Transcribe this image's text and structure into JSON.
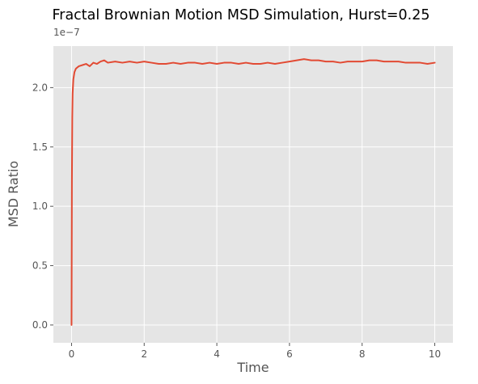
{
  "chart_data": {
    "type": "line",
    "title": "Fractal Brownian Motion MSD Simulation, Hurst=0.25",
    "xlabel": "Time",
    "ylabel": "MSD Ratio",
    "offset_text": "1e−7",
    "xlim": [
      -0.5,
      10.5
    ],
    "ylim": [
      -0.15,
      2.35
    ],
    "y_scale_exponent": -7,
    "x_ticks": [
      0,
      2,
      4,
      6,
      8,
      10
    ],
    "x_tick_labels": [
      "0",
      "2",
      "4",
      "6",
      "8",
      "10"
    ],
    "y_ticks": [
      0.0,
      0.5,
      1.0,
      1.5,
      2.0
    ],
    "y_tick_labels": [
      "0.0",
      "0.5",
      "1.0",
      "1.5",
      "2.0"
    ],
    "grid": true,
    "line_color": "#E24A33",
    "background_color": "#E5E5E5",
    "grid_color": "#FFFFFF",
    "series": [
      {
        "x": [
          0,
          0.01,
          0.02,
          0.03,
          0.05,
          0.08,
          0.12,
          0.2,
          0.3,
          0.4,
          0.5,
          0.6,
          0.7,
          0.8,
          0.9,
          1.0,
          1.2,
          1.4,
          1.6,
          1.8,
          2.0,
          2.2,
          2.4,
          2.6,
          2.8,
          3.0,
          3.2,
          3.4,
          3.6,
          3.8,
          4.0,
          4.2,
          4.4,
          4.6,
          4.8,
          5.0,
          5.2,
          5.4,
          5.6,
          5.8,
          6.0,
          6.2,
          6.4,
          6.6,
          6.8,
          7.0,
          7.2,
          7.4,
          7.6,
          7.8,
          8.0,
          8.2,
          8.4,
          8.6,
          8.8,
          9.0,
          9.2,
          9.4,
          9.6,
          9.8,
          10.0
        ],
        "y": [
          0.0,
          1.2,
          1.75,
          1.95,
          2.07,
          2.13,
          2.16,
          2.18,
          2.19,
          2.2,
          2.18,
          2.21,
          2.2,
          2.22,
          2.23,
          2.21,
          2.22,
          2.21,
          2.22,
          2.21,
          2.22,
          2.21,
          2.2,
          2.2,
          2.21,
          2.2,
          2.21,
          2.21,
          2.2,
          2.21,
          2.2,
          2.21,
          2.21,
          2.2,
          2.21,
          2.2,
          2.2,
          2.21,
          2.2,
          2.21,
          2.22,
          2.23,
          2.24,
          2.23,
          2.23,
          2.22,
          2.22,
          2.21,
          2.22,
          2.22,
          2.22,
          2.23,
          2.23,
          2.22,
          2.22,
          2.22,
          2.21,
          2.21,
          2.21,
          2.2,
          2.21
        ]
      }
    ]
  }
}
